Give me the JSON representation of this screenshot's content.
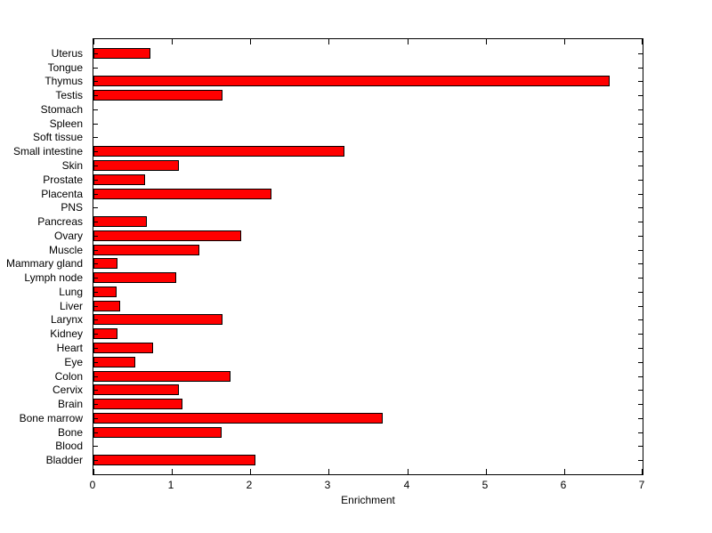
{
  "figure": {
    "background_color": "#FFFFFF"
  },
  "chart_data": {
    "type": "bar",
    "orientation": "horizontal",
    "title": "",
    "xlabel": "Enrichment",
    "ylabel": "",
    "xlim": [
      0,
      7
    ],
    "x_ticks": [
      0,
      1,
      2,
      3,
      4,
      5,
      6,
      7
    ],
    "grid": false,
    "legend": null,
    "bar_color": "#FF0000",
    "bar_edge_color": "#000000",
    "categories_order": "top-to-bottom",
    "categories": [
      "Uterus",
      "Tongue",
      "Thymus",
      "Testis",
      "Stomach",
      "Spleen",
      "Soft tissue",
      "Small intestine",
      "Skin",
      "Prostate",
      "Placenta",
      "PNS",
      "Pancreas",
      "Ovary",
      "Muscle",
      "Mammary gland",
      "Lymph node",
      "Lung",
      "Liver",
      "Larynx",
      "Kidney",
      "Heart",
      "Eye",
      "Colon",
      "Cervix",
      "Brain",
      "Bone marrow",
      "Bone",
      "Blood",
      "Bladder"
    ],
    "values": [
      0.73,
      0,
      6.58,
      1.64,
      0,
      0,
      0,
      3.2,
      1.09,
      0.66,
      2.27,
      0,
      0.68,
      1.88,
      1.35,
      0.31,
      1.05,
      0.3,
      0.34,
      1.64,
      0.31,
      0.76,
      0.53,
      1.75,
      1.09,
      1.14,
      3.69,
      1.63,
      0,
      2.06
    ]
  }
}
